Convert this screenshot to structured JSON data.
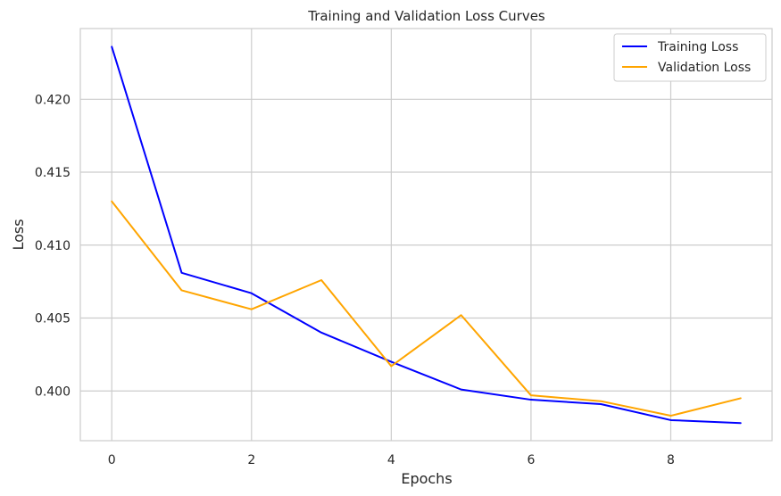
{
  "chart_data": {
    "type": "line",
    "title": "Training and Validation Loss Curves",
    "xlabel": "Epochs",
    "ylabel": "Loss",
    "x": [
      0,
      1,
      2,
      3,
      4,
      5,
      6,
      7,
      8,
      9
    ],
    "xlim": [
      -0.45,
      9.45
    ],
    "ylim": [
      0.39659,
      0.42485
    ],
    "xticks": [
      0,
      2,
      4,
      6,
      8
    ],
    "xtick_labels": [
      "0",
      "2",
      "4",
      "6",
      "8"
    ],
    "yticks": [
      0.4,
      0.405,
      0.41,
      0.415,
      0.42
    ],
    "ytick_labels": [
      "0.400",
      "0.405",
      "0.410",
      "0.415",
      "0.420"
    ],
    "grid": true,
    "legend": "top-right",
    "series": [
      {
        "name": "Training Loss",
        "color": "#0000ff",
        "values": [
          0.4236,
          0.4081,
          0.4067,
          0.404,
          0.402,
          0.4001,
          0.3994,
          0.3991,
          0.398,
          0.3978
        ]
      },
      {
        "name": "Validation Loss",
        "color": "#ffa500",
        "values": [
          0.413,
          0.4069,
          0.4056,
          0.4076,
          0.4017,
          0.4052,
          0.3997,
          0.3993,
          0.3983,
          0.3995
        ]
      }
    ]
  }
}
